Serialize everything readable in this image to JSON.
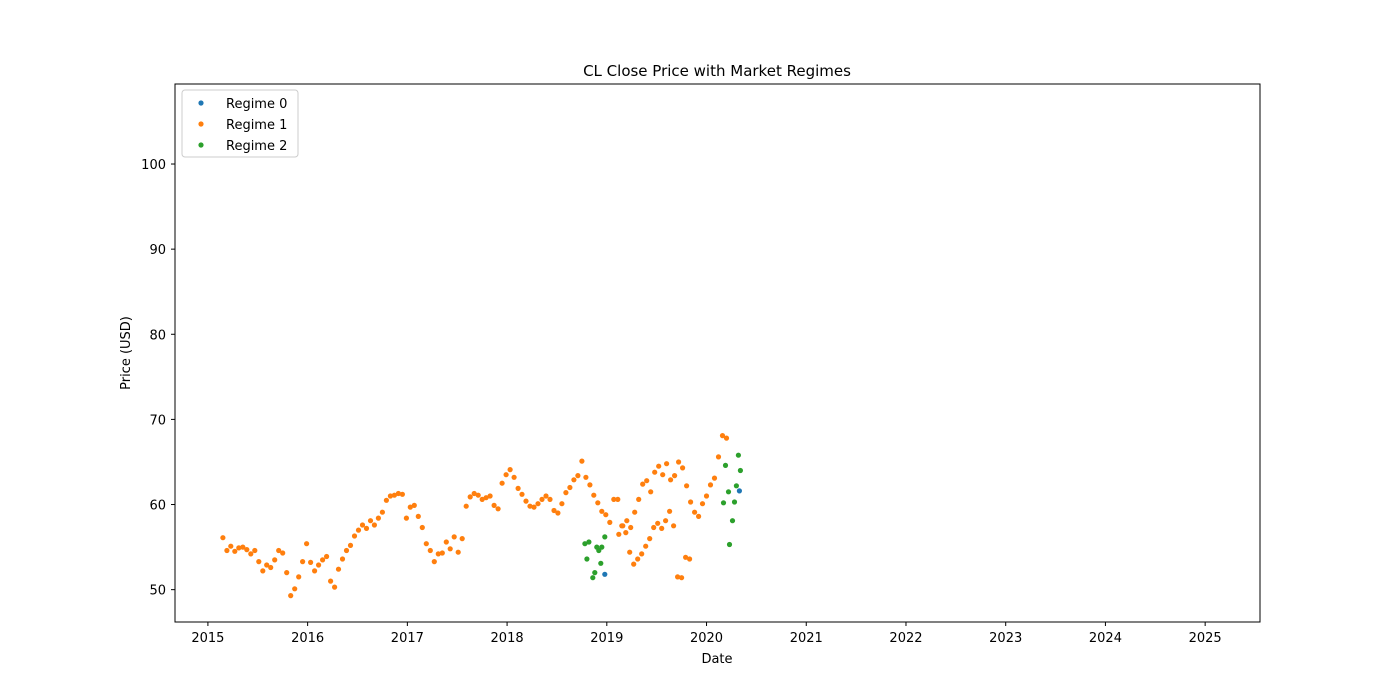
{
  "chart_data": {
    "type": "scatter",
    "title": "CL Close Price with Market Regimes",
    "xlabel": "Date",
    "ylabel": "Price (USD)",
    "xlim": [
      2014.67,
      2025.55
    ],
    "ylim": [
      46.2,
      109.4
    ],
    "x_ticks": [
      2015,
      2016,
      2017,
      2018,
      2019,
      2020,
      2021,
      2022,
      2023,
      2024,
      2025
    ],
    "x_tick_labels": [
      "2015",
      "2016",
      "2017",
      "2018",
      "2019",
      "2020",
      "2021",
      "2022",
      "2023",
      "2024",
      "2025"
    ],
    "y_ticks": [
      50,
      60,
      70,
      80,
      90,
      100
    ],
    "y_tick_labels": [
      "50",
      "60",
      "70",
      "80",
      "90",
      "100"
    ],
    "grid": false,
    "legend_position": "top-left",
    "series": [
      {
        "name": "Regime 0",
        "color": "#1f77b4",
        "points": [
          [
            2018.98,
            51.8
          ],
          [
            2020.33,
            61.6
          ]
        ]
      },
      {
        "name": "Regime 1",
        "color": "#ff7f0e",
        "points": [
          [
            2015.15,
            56.1
          ],
          [
            2015.19,
            54.6
          ],
          [
            2015.23,
            55.1
          ],
          [
            2015.27,
            54.5
          ],
          [
            2015.31,
            54.9
          ],
          [
            2015.35,
            55.0
          ],
          [
            2015.39,
            54.7
          ],
          [
            2015.43,
            54.2
          ],
          [
            2015.47,
            54.6
          ],
          [
            2015.51,
            53.3
          ],
          [
            2015.55,
            52.2
          ],
          [
            2015.59,
            52.9
          ],
          [
            2015.63,
            52.6
          ],
          [
            2015.67,
            53.5
          ],
          [
            2015.71,
            54.6
          ],
          [
            2015.75,
            54.3
          ],
          [
            2015.79,
            52.0
          ],
          [
            2015.83,
            49.3
          ],
          [
            2015.87,
            50.1
          ],
          [
            2015.91,
            51.5
          ],
          [
            2015.95,
            53.3
          ],
          [
            2015.99,
            55.4
          ],
          [
            2016.03,
            53.2
          ],
          [
            2016.07,
            52.2
          ],
          [
            2016.11,
            52.9
          ],
          [
            2016.15,
            53.5
          ],
          [
            2016.19,
            53.9
          ],
          [
            2016.23,
            51.0
          ],
          [
            2016.27,
            50.3
          ],
          [
            2016.31,
            52.4
          ],
          [
            2016.35,
            53.6
          ],
          [
            2016.39,
            54.6
          ],
          [
            2016.43,
            55.2
          ],
          [
            2016.47,
            56.3
          ],
          [
            2016.51,
            57.0
          ],
          [
            2016.55,
            57.6
          ],
          [
            2016.59,
            57.2
          ],
          [
            2016.63,
            58.1
          ],
          [
            2016.67,
            57.6
          ],
          [
            2016.71,
            58.4
          ],
          [
            2016.75,
            59.1
          ],
          [
            2016.79,
            60.5
          ],
          [
            2016.83,
            61.0
          ],
          [
            2016.87,
            61.1
          ],
          [
            2016.91,
            61.3
          ],
          [
            2016.95,
            61.2
          ],
          [
            2016.99,
            58.4
          ],
          [
            2017.03,
            59.7
          ],
          [
            2017.07,
            59.9
          ],
          [
            2017.11,
            58.6
          ],
          [
            2017.15,
            57.3
          ],
          [
            2017.19,
            55.4
          ],
          [
            2017.23,
            54.6
          ],
          [
            2017.27,
            53.3
          ],
          [
            2017.31,
            54.2
          ],
          [
            2017.35,
            54.3
          ],
          [
            2017.39,
            55.6
          ],
          [
            2017.43,
            54.8
          ],
          [
            2017.47,
            56.2
          ],
          [
            2017.51,
            54.4
          ],
          [
            2017.55,
            56.0
          ],
          [
            2017.59,
            59.8
          ],
          [
            2017.63,
            60.9
          ],
          [
            2017.67,
            61.3
          ],
          [
            2017.71,
            61.1
          ],
          [
            2017.75,
            60.6
          ],
          [
            2017.79,
            60.8
          ],
          [
            2017.83,
            61.0
          ],
          [
            2017.87,
            59.9
          ],
          [
            2017.91,
            59.5
          ],
          [
            2017.95,
            62.5
          ],
          [
            2017.99,
            63.5
          ],
          [
            2018.03,
            64.1
          ],
          [
            2018.07,
            63.2
          ],
          [
            2018.11,
            61.9
          ],
          [
            2018.15,
            61.2
          ],
          [
            2018.19,
            60.4
          ],
          [
            2018.23,
            59.8
          ],
          [
            2018.27,
            59.7
          ],
          [
            2018.31,
            60.1
          ],
          [
            2018.35,
            60.6
          ],
          [
            2018.39,
            61.0
          ],
          [
            2018.43,
            60.6
          ],
          [
            2018.47,
            59.3
          ],
          [
            2018.51,
            59.0
          ],
          [
            2018.55,
            60.1
          ],
          [
            2018.59,
            61.4
          ],
          [
            2018.63,
            62.0
          ],
          [
            2018.67,
            62.9
          ],
          [
            2018.71,
            63.4
          ],
          [
            2018.75,
            65.1
          ],
          [
            2018.79,
            63.2
          ],
          [
            2018.83,
            62.3
          ],
          [
            2018.87,
            61.1
          ],
          [
            2018.91,
            60.2
          ],
          [
            2018.95,
            59.2
          ],
          [
            2018.99,
            58.8
          ],
          [
            2019.03,
            57.9
          ],
          [
            2019.07,
            60.6
          ],
          [
            2019.11,
            60.6
          ],
          [
            2019.15,
            57.5
          ],
          [
            2019.19,
            56.7
          ],
          [
            2019.23,
            54.4
          ],
          [
            2019.27,
            53.0
          ],
          [
            2019.31,
            53.6
          ],
          [
            2019.35,
            54.2
          ],
          [
            2019.39,
            55.1
          ],
          [
            2019.43,
            56.0
          ],
          [
            2019.47,
            57.3
          ],
          [
            2019.51,
            57.8
          ],
          [
            2019.55,
            57.2
          ],
          [
            2019.59,
            58.1
          ],
          [
            2019.63,
            59.2
          ],
          [
            2019.67,
            57.5
          ],
          [
            2019.71,
            51.5
          ],
          [
            2019.75,
            51.4
          ],
          [
            2019.79,
            53.8
          ],
          [
            2019.83,
            53.6
          ],
          [
            2019.12,
            56.5
          ],
          [
            2019.16,
            57.5
          ],
          [
            2019.2,
            58.1
          ],
          [
            2019.24,
            57.3
          ],
          [
            2019.28,
            59.1
          ],
          [
            2019.32,
            60.6
          ],
          [
            2019.36,
            62.4
          ],
          [
            2019.4,
            62.8
          ],
          [
            2019.44,
            61.5
          ],
          [
            2019.48,
            63.8
          ],
          [
            2019.52,
            64.5
          ],
          [
            2019.56,
            63.5
          ],
          [
            2019.6,
            64.8
          ],
          [
            2019.64,
            62.9
          ],
          [
            2019.68,
            63.4
          ],
          [
            2019.72,
            65.0
          ],
          [
            2019.76,
            64.3
          ],
          [
            2019.8,
            62.2
          ],
          [
            2019.84,
            60.3
          ],
          [
            2019.88,
            59.1
          ],
          [
            2019.92,
            58.6
          ],
          [
            2019.96,
            60.1
          ],
          [
            2020.0,
            61.0
          ],
          [
            2020.04,
            62.3
          ],
          [
            2020.08,
            63.1
          ],
          [
            2020.12,
            65.6
          ],
          [
            2020.16,
            68.1
          ],
          [
            2020.2,
            67.8
          ]
        ]
      },
      {
        "name": "Regime 2",
        "color": "#2ca02c",
        "points": [
          [
            2018.78,
            55.4
          ],
          [
            2018.82,
            55.6
          ],
          [
            2018.86,
            51.4
          ],
          [
            2018.88,
            52.0
          ],
          [
            2018.9,
            55.0
          ],
          [
            2018.92,
            54.6
          ],
          [
            2018.95,
            55.0
          ],
          [
            2018.98,
            56.2
          ],
          [
            2018.94,
            53.1
          ],
          [
            2018.8,
            53.6
          ],
          [
            2020.17,
            60.2
          ],
          [
            2020.19,
            64.6
          ],
          [
            2020.22,
            61.5
          ],
          [
            2020.23,
            55.3
          ],
          [
            2020.26,
            58.1
          ],
          [
            2020.28,
            60.3
          ],
          [
            2020.3,
            62.2
          ],
          [
            2020.32,
            65.8
          ],
          [
            2020.34,
            64.0
          ]
        ]
      }
    ]
  }
}
